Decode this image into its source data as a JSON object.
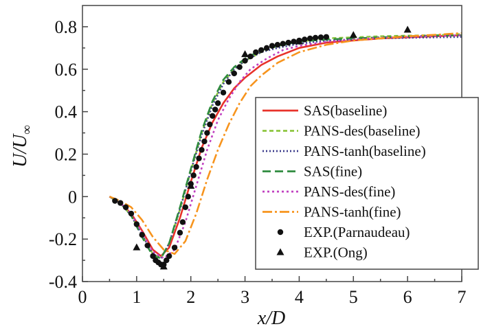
{
  "chart_data": {
    "type": "line",
    "title": "",
    "xlabel": "x/D",
    "ylabel": "U/U∞",
    "xlim": [
      0,
      7
    ],
    "ylim": [
      -0.4,
      0.9
    ],
    "xticks": [
      0,
      1,
      2,
      3,
      4,
      5,
      6,
      7
    ],
    "xtick_labels": [
      "0",
      "1",
      "2",
      "3",
      "4",
      "5",
      "6",
      "7"
    ],
    "yticks": [
      -0.4,
      -0.2,
      0,
      0.2,
      0.4,
      0.6,
      0.8
    ],
    "ytick_labels": [
      "-0.4",
      "-0.2",
      "0",
      "0.2",
      "0.4",
      "0.6",
      "0.8"
    ],
    "legend_position": "right",
    "series": [
      {
        "name": "SAS(baseline)",
        "kind": "line",
        "color": "#e8322a",
        "dash": "solid",
        "x": [
          0.5,
          0.7,
          0.9,
          1.1,
          1.3,
          1.45,
          1.6,
          1.8,
          2.0,
          2.2,
          2.4,
          2.6,
          2.8,
          3.0,
          3.3,
          3.6,
          4.0,
          4.5,
          5.0,
          5.5,
          6.0,
          6.5,
          7.0
        ],
        "y": [
          0.0,
          -0.03,
          -0.08,
          -0.16,
          -0.25,
          -0.28,
          -0.24,
          -0.1,
          0.07,
          0.23,
          0.35,
          0.44,
          0.51,
          0.56,
          0.62,
          0.66,
          0.7,
          0.725,
          0.735,
          0.745,
          0.75,
          0.755,
          0.76
        ]
      },
      {
        "name": "PANS-des(baseline)",
        "kind": "line",
        "color": "#8dc63f",
        "dash": "6,4",
        "x": [
          0.5,
          0.7,
          0.9,
          1.1,
          1.3,
          1.45,
          1.6,
          1.8,
          2.0,
          2.2,
          2.4,
          2.6,
          2.8,
          3.0,
          3.3,
          3.6,
          4.0,
          4.5,
          5.0,
          5.5,
          6.0,
          6.5,
          7.0
        ],
        "y": [
          0.0,
          -0.03,
          -0.09,
          -0.18,
          -0.27,
          -0.29,
          -0.22,
          -0.06,
          0.12,
          0.3,
          0.44,
          0.54,
          0.6,
          0.64,
          0.68,
          0.71,
          0.73,
          0.745,
          0.75,
          0.755,
          0.758,
          0.76,
          0.765
        ]
      },
      {
        "name": "PANS-tanh(baseline)",
        "kind": "line",
        "color": "#3c3c8c",
        "dash": "2,3",
        "x": [
          0.5,
          0.7,
          0.9,
          1.1,
          1.3,
          1.45,
          1.6,
          1.8,
          2.0,
          2.2,
          2.4,
          2.6,
          2.8,
          3.0,
          3.3,
          3.6,
          4.0,
          4.5,
          5.0,
          5.5,
          6.0,
          6.5,
          7.0
        ],
        "y": [
          0.0,
          -0.03,
          -0.09,
          -0.18,
          -0.27,
          -0.29,
          -0.22,
          -0.06,
          0.12,
          0.29,
          0.43,
          0.53,
          0.6,
          0.64,
          0.68,
          0.7,
          0.72,
          0.735,
          0.74,
          0.745,
          0.748,
          0.75,
          0.752
        ]
      },
      {
        "name": "SAS(fine)",
        "kind": "line",
        "color": "#2e8b3e",
        "dash": "12,6",
        "x": [
          0.5,
          0.7,
          0.9,
          1.1,
          1.3,
          1.45,
          1.6,
          1.8,
          2.0,
          2.2,
          2.4,
          2.6,
          2.8,
          3.0,
          3.3,
          3.6,
          4.0,
          4.5,
          5.0,
          5.5,
          6.0,
          6.5,
          7.0
        ],
        "y": [
          0.0,
          -0.03,
          -0.09,
          -0.19,
          -0.28,
          -0.29,
          -0.22,
          -0.05,
          0.13,
          0.31,
          0.45,
          0.55,
          0.61,
          0.65,
          0.69,
          0.71,
          0.73,
          0.74,
          0.745,
          0.75,
          0.755,
          0.758,
          0.76
        ]
      },
      {
        "name": "PANS-des(fine)",
        "kind": "line",
        "color": "#c040c0",
        "dash": "3,4",
        "x": [
          0.5,
          0.7,
          0.9,
          1.1,
          1.3,
          1.5,
          1.7,
          1.9,
          2.1,
          2.3,
          2.5,
          2.7,
          2.9,
          3.1,
          3.4,
          3.7,
          4.0,
          4.5,
          5.0,
          5.5,
          6.0,
          6.5,
          7.0
        ],
        "y": [
          0.0,
          -0.03,
          -0.08,
          -0.17,
          -0.26,
          -0.29,
          -0.25,
          -0.12,
          0.05,
          0.22,
          0.36,
          0.46,
          0.54,
          0.6,
          0.65,
          0.69,
          0.71,
          0.73,
          0.74,
          0.748,
          0.752,
          0.756,
          0.76
        ]
      },
      {
        "name": "PANS-tanh(fine)",
        "kind": "line",
        "color": "#f7941d",
        "dash": "14,4,3,4",
        "x": [
          0.5,
          0.7,
          0.9,
          1.1,
          1.3,
          1.5,
          1.7,
          1.9,
          2.1,
          2.3,
          2.5,
          2.7,
          2.9,
          3.1,
          3.3,
          3.6,
          4.0,
          4.5,
          5.0,
          5.5,
          6.0,
          6.5,
          7.0
        ],
        "y": [
          0.0,
          -0.02,
          -0.05,
          -0.11,
          -0.19,
          -0.25,
          -0.27,
          -0.21,
          -0.08,
          0.08,
          0.22,
          0.34,
          0.44,
          0.52,
          0.57,
          0.63,
          0.68,
          0.715,
          0.735,
          0.745,
          0.755,
          0.762,
          0.77
        ]
      },
      {
        "name": "EXP.(Parnaudeau)",
        "kind": "scatter",
        "marker": "circle",
        "color": "#111111",
        "x": [
          0.6,
          0.7,
          0.8,
          0.9,
          1.0,
          1.1,
          1.2,
          1.3,
          1.35,
          1.4,
          1.45,
          1.5,
          1.55,
          1.6,
          1.7,
          1.8,
          1.85,
          1.9,
          1.95,
          2.0,
          2.05,
          2.1,
          2.15,
          2.2,
          2.25,
          2.3,
          2.35,
          2.4,
          2.45,
          2.5,
          2.6,
          2.7,
          2.8,
          2.9,
          3.0,
          3.1,
          3.2,
          3.3,
          3.4,
          3.5,
          3.6,
          3.7,
          3.8,
          3.9,
          4.0,
          4.1,
          4.2,
          4.3,
          4.4,
          4.5
        ],
        "y": [
          -0.02,
          -0.03,
          -0.05,
          -0.08,
          -0.13,
          -0.18,
          -0.23,
          -0.28,
          -0.3,
          -0.31,
          -0.32,
          -0.32,
          -0.3,
          -0.28,
          -0.24,
          -0.17,
          -0.12,
          -0.05,
          0.0,
          0.06,
          0.1,
          0.14,
          0.18,
          0.22,
          0.26,
          0.3,
          0.34,
          0.38,
          0.41,
          0.44,
          0.49,
          0.54,
          0.58,
          0.61,
          0.64,
          0.66,
          0.68,
          0.69,
          0.7,
          0.71,
          0.715,
          0.72,
          0.725,
          0.73,
          0.735,
          0.74,
          0.745,
          0.748,
          0.75,
          0.752
        ]
      },
      {
        "name": "EXP.(Ong)",
        "kind": "scatter",
        "marker": "triangle",
        "color": "#111111",
        "x": [
          1.0,
          1.5,
          2.0,
          3.0,
          4.0,
          5.0,
          6.0
        ],
        "y": [
          -0.24,
          -0.33,
          0.05,
          0.67,
          0.73,
          0.76,
          0.785
        ]
      }
    ]
  }
}
